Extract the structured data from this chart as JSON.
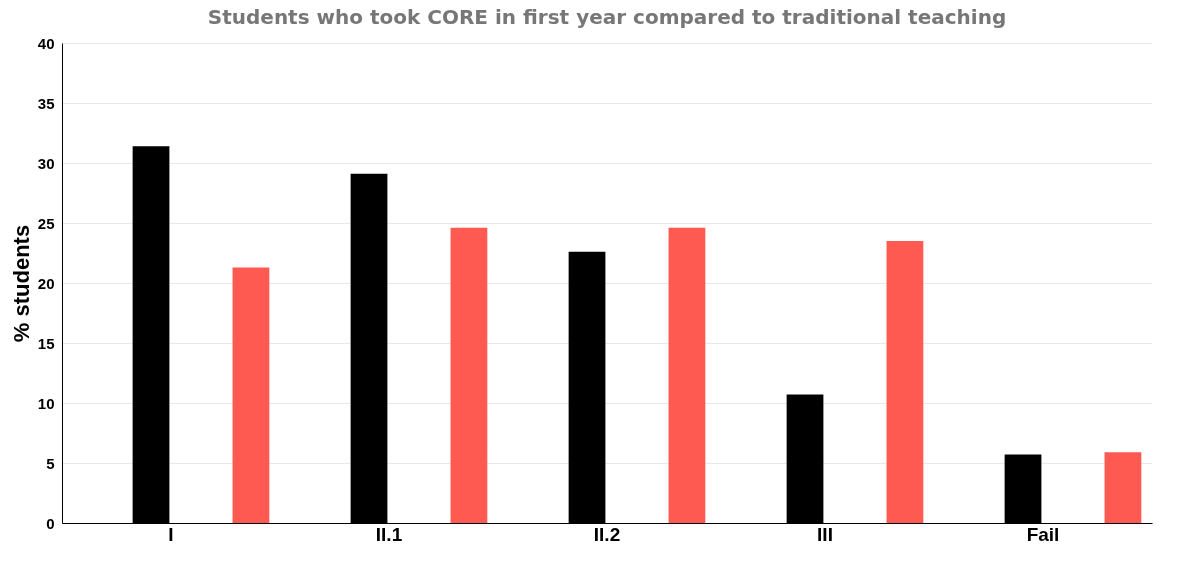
{
  "chart_data": {
    "type": "bar",
    "title": "Students who took CORE in first year compared to traditional teaching",
    "ylabel": "% students",
    "categories": [
      "I",
      "II.1",
      "II.2",
      "III",
      "Fail"
    ],
    "series": [
      {
        "color": "#000000",
        "values": [
          31.4,
          29.1,
          22.6,
          10.7,
          5.7
        ]
      },
      {
        "color": "#ff5a52",
        "values": [
          21.3,
          24.6,
          24.6,
          23.5,
          5.9
        ]
      }
    ],
    "ylim": [
      0,
      40
    ],
    "yticks": [
      0,
      5,
      10,
      15,
      20,
      25,
      30,
      35,
      40
    ],
    "grid": "y",
    "legend": false
  }
}
